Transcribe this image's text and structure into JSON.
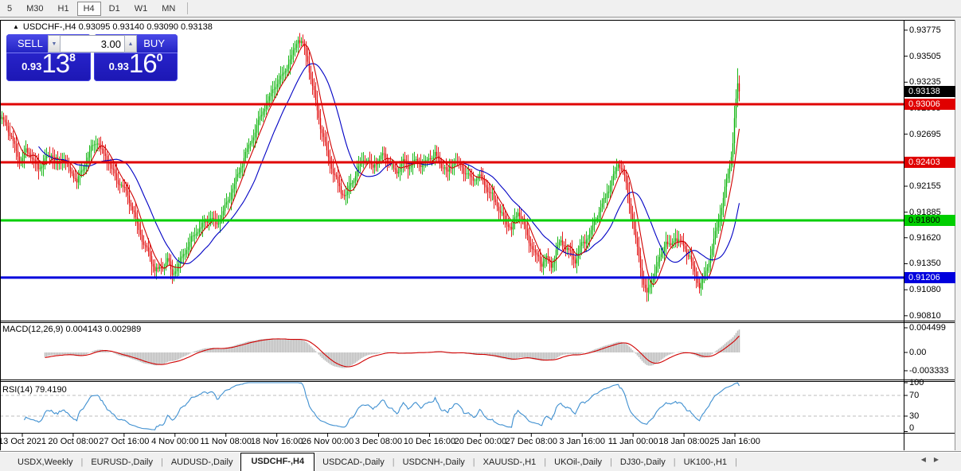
{
  "toolbar": {
    "active": "H4",
    "timeframes": [
      "5",
      "M30",
      "H1",
      "H4",
      "D1",
      "W1",
      "MN"
    ]
  },
  "header": {
    "collapse_glyph": "▲",
    "title": "USDCHF-,H4  0.93095 0.93140 0.93090 0.93138"
  },
  "trade_panel": {
    "sell_label": "SELL",
    "buy_label": "BUY",
    "volume": "3.00",
    "spin_down_glyph": "▼",
    "spin_up_glyph": "▲",
    "sell_price": {
      "small": "0.93",
      "big": "13",
      "sup": "8"
    },
    "buy_price": {
      "small": "0.93",
      "big": "16",
      "sup": "0"
    }
  },
  "panes": {
    "macd": {
      "label": "MACD(12,26,9) 0.004143 0.002989"
    },
    "rsi": {
      "label": "RSI(14) 79.4190"
    }
  },
  "tabs": {
    "active": "USDCHF-,H4",
    "items": [
      "USDX,Weekly",
      "EURUSD-,Daily",
      "AUDUSD-,Daily",
      "USDCHF-,H4",
      "USDCAD-,Daily",
      "USDCNH-,Daily",
      "XAUUSD-,H1",
      "UKOil-,Daily",
      "DJ30-,Daily",
      "UK100-,H1"
    ],
    "pager_left": "◀",
    "pager_right": "▶"
  },
  "chart_data": {
    "type": "candlestick",
    "symbol": "USDCHF-",
    "timeframe": "H4",
    "ohlc": {
      "open": "0.93095",
      "high": "0.93140",
      "low": "0.93090",
      "close": "0.93138"
    },
    "bid_badge": {
      "price": 0.93138,
      "bg": "#000000",
      "fg": "#ffffff"
    },
    "price_axis_ticks": [
      0.93775,
      0.93505,
      0.93235,
      0.92965,
      0.92695,
      0.92155,
      0.91885,
      0.9162,
      0.9135,
      0.9108,
      0.9081
    ],
    "level_lines": [
      {
        "name": "resistance-upper",
        "price": 0.93006,
        "color": "#e00000",
        "fg": "#ffffff"
      },
      {
        "name": "resistance-mid",
        "price": 0.92403,
        "color": "#e00000",
        "fg": "#ffffff"
      },
      {
        "name": "support-green",
        "price": 0.918,
        "color": "#00ce00",
        "fg": "#000000"
      },
      {
        "name": "support-blue",
        "price": 0.91206,
        "color": "#0000dd",
        "fg": "#ffffff"
      }
    ],
    "candle_up_color": "#00b000",
    "candle_down_color": "#e00000",
    "ma_fast": {
      "period": 8,
      "color": "#d00000"
    },
    "ma_slow": {
      "period": 25,
      "color": "#0000c4"
    },
    "macd": {
      "params": "12,26,9",
      "value": 0.004143,
      "signal_value": 0.002989,
      "axis_ticks": [
        0.004499,
        0.0,
        -0.003333
      ],
      "hist_color": "#c0c0c0",
      "signal_color": "#d00000"
    },
    "rsi": {
      "period": 14,
      "value": 79.419,
      "axis_ticks": [
        100,
        70,
        30,
        0
      ],
      "line_color": "#3e8fd0",
      "levels": [
        70,
        30
      ],
      "level_color": "#bdbdbd"
    },
    "time_labels": [
      "13 Oct 2021",
      "20 Oct 08:00",
      "27 Oct 16:00",
      "4 Nov 00:00",
      "11 Nov 08:00",
      "18 Nov 16:00",
      "26 Nov 00:00",
      "3 Dec 08:00",
      "10 Dec 16:00",
      "20 Dec 00:00",
      "27 Dec 08:00",
      "3 Jan 16:00",
      "11 Jan 00:00",
      "18 Jan 08:00",
      "25 Jan 16:00"
    ],
    "bar_spacing_px": 2,
    "seed": 7,
    "spike_high": 0.9338,
    "close_path_anchors": [
      [
        0,
        0.9287
      ],
      [
        8,
        0.9278
      ],
      [
        16,
        0.9262
      ],
      [
        24,
        0.924
      ],
      [
        32,
        0.9252
      ],
      [
        40,
        0.9245
      ],
      [
        48,
        0.9232
      ],
      [
        56,
        0.9244
      ],
      [
        64,
        0.9248
      ],
      [
        72,
        0.9238
      ],
      [
        80,
        0.9245
      ],
      [
        88,
        0.923
      ],
      [
        96,
        0.9222
      ],
      [
        104,
        0.9232
      ],
      [
        112,
        0.9252
      ],
      [
        122,
        0.9262
      ],
      [
        130,
        0.9248
      ],
      [
        138,
        0.9238
      ],
      [
        146,
        0.9222
      ],
      [
        154,
        0.9215
      ],
      [
        162,
        0.92
      ],
      [
        170,
        0.9182
      ],
      [
        178,
        0.916
      ],
      [
        186,
        0.9145
      ],
      [
        194,
        0.913
      ],
      [
        202,
        0.9128
      ],
      [
        210,
        0.914
      ],
      [
        216,
        0.9122
      ],
      [
        224,
        0.9135
      ],
      [
        232,
        0.9148
      ],
      [
        240,
        0.916
      ],
      [
        248,
        0.917
      ],
      [
        256,
        0.9178
      ],
      [
        264,
        0.9183
      ],
      [
        272,
        0.9175
      ],
      [
        280,
        0.919
      ],
      [
        288,
        0.9205
      ],
      [
        296,
        0.9222
      ],
      [
        304,
        0.924
      ],
      [
        312,
        0.9258
      ],
      [
        320,
        0.9272
      ],
      [
        328,
        0.929
      ],
      [
        336,
        0.9305
      ],
      [
        344,
        0.9318
      ],
      [
        352,
        0.9328
      ],
      [
        360,
        0.9338
      ],
      [
        368,
        0.9355
      ],
      [
        374,
        0.9368
      ],
      [
        380,
        0.9362
      ],
      [
        386,
        0.9345
      ],
      [
        392,
        0.932
      ],
      [
        398,
        0.9295
      ],
      [
        404,
        0.927
      ],
      [
        410,
        0.9252
      ],
      [
        416,
        0.9235
      ],
      [
        422,
        0.9222
      ],
      [
        428,
        0.921
      ],
      [
        434,
        0.9205
      ],
      [
        440,
        0.9218
      ],
      [
        446,
        0.9228
      ],
      [
        452,
        0.9238
      ],
      [
        458,
        0.9245
      ],
      [
        466,
        0.9235
      ],
      [
        474,
        0.9242
      ],
      [
        482,
        0.9248
      ],
      [
        490,
        0.9238
      ],
      [
        498,
        0.923
      ],
      [
        506,
        0.924
      ],
      [
        514,
        0.9236
      ],
      [
        522,
        0.9242
      ],
      [
        530,
        0.9238
      ],
      [
        538,
        0.9244
      ],
      [
        546,
        0.9248
      ],
      [
        554,
        0.9238
      ],
      [
        562,
        0.923
      ],
      [
        570,
        0.9242
      ],
      [
        578,
        0.9236
      ],
      [
        586,
        0.9228
      ],
      [
        594,
        0.9222
      ],
      [
        602,
        0.9226
      ],
      [
        610,
        0.9215
      ],
      [
        618,
        0.9205
      ],
      [
        626,
        0.9192
      ],
      [
        634,
        0.918
      ],
      [
        642,
        0.9172
      ],
      [
        650,
        0.9188
      ],
      [
        656,
        0.9178
      ],
      [
        662,
        0.9162
      ],
      [
        668,
        0.9152
      ],
      [
        674,
        0.9142
      ],
      [
        680,
        0.9135
      ],
      [
        686,
        0.9142
      ],
      [
        692,
        0.9132
      ],
      [
        698,
        0.9148
      ],
      [
        704,
        0.9158
      ],
      [
        710,
        0.9152
      ],
      [
        716,
        0.9146
      ],
      [
        722,
        0.9138
      ],
      [
        728,
        0.9152
      ],
      [
        734,
        0.9158
      ],
      [
        740,
        0.9165
      ],
      [
        746,
        0.9178
      ],
      [
        752,
        0.919
      ],
      [
        758,
        0.92
      ],
      [
        764,
        0.9212
      ],
      [
        770,
        0.9226
      ],
      [
        776,
        0.924
      ],
      [
        782,
        0.9232
      ],
      [
        788,
        0.9208
      ],
      [
        794,
        0.918
      ],
      [
        800,
        0.915
      ],
      [
        806,
        0.9122
      ],
      [
        812,
        0.9105
      ],
      [
        818,
        0.9118
      ],
      [
        824,
        0.9132
      ],
      [
        830,
        0.9145
      ],
      [
        836,
        0.9158
      ],
      [
        842,
        0.9152
      ],
      [
        848,
        0.9163
      ],
      [
        854,
        0.9156
      ],
      [
        860,
        0.915
      ],
      [
        866,
        0.9142
      ],
      [
        872,
        0.9125
      ],
      [
        878,
        0.9112
      ],
      [
        884,
        0.912
      ],
      [
        890,
        0.9138
      ],
      [
        896,
        0.9158
      ],
      [
        902,
        0.918
      ],
      [
        908,
        0.9203
      ],
      [
        913,
        0.9225
      ],
      [
        917,
        0.9243
      ],
      [
        920,
        0.9262
      ],
      [
        923,
        0.9295
      ],
      [
        926,
        0.932
      ],
      [
        928,
        0.93138
      ]
    ]
  }
}
